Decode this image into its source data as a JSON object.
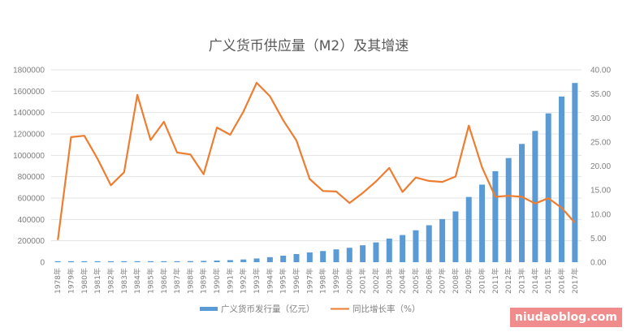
{
  "chart_data": {
    "type": "bar+line",
    "title": "广义货币供应量（M2）及其增速",
    "categories": [
      "1978年",
      "1979年",
      "1980年",
      "1981年",
      "1982年",
      "1983年",
      "1984年",
      "1985年",
      "1986年",
      "1987年",
      "1988年",
      "1989年",
      "1990年",
      "1991年",
      "1992年",
      "1993年",
      "1994年",
      "1995年",
      "1996年",
      "1997年",
      "1998年",
      "1999年",
      "2000年",
      "2001年",
      "2002年",
      "2003年",
      "2004年",
      "2005年",
      "2006年",
      "2007年",
      "2008年",
      "2009年",
      "2010年",
      "2011年",
      "2012年",
      "2013年",
      "2014年",
      "2015年",
      "2016年",
      "2017年"
    ],
    "series": [
      {
        "name": "广义货币发行量（亿元）",
        "type": "bar",
        "axis": "left",
        "color": "#5b9bd5",
        "values": [
          859,
          1177,
          1671,
          2234,
          2589,
          3075,
          4146,
          5199,
          6721,
          8330,
          10100,
          11950,
          15293,
          19350,
          25402,
          34880,
          46924,
          60751,
          76095,
          90995,
          104499,
          119898,
          134610,
          158302,
          185007,
          221223,
          254107,
          298756,
          345578,
          403442,
          475167,
          610225,
          725852,
          851591,
          974149,
          1106525,
          1228375,
          1392278,
          1550067,
          1676769
        ]
      },
      {
        "name": "同比增长率（%）",
        "type": "line",
        "axis": "right",
        "color": "#ed7d31",
        "values": [
          4.6,
          26.0,
          26.3,
          21.5,
          16.0,
          18.7,
          34.8,
          25.4,
          29.2,
          22.8,
          22.4,
          18.3,
          28.0,
          26.5,
          31.3,
          37.3,
          34.5,
          29.5,
          25.3,
          17.3,
          14.8,
          14.7,
          12.3,
          14.4,
          16.8,
          19.6,
          14.6,
          17.6,
          16.9,
          16.7,
          17.8,
          28.4,
          19.7,
          13.6,
          13.8,
          13.6,
          12.2,
          13.3,
          11.3,
          8.2
        ]
      }
    ],
    "left_axis": {
      "ylim": [
        0,
        1800000
      ],
      "ticks": [
        "0",
        "200000",
        "400000",
        "600000",
        "800000",
        "1000000",
        "1200000",
        "1400000",
        "1600000",
        "1800000"
      ]
    },
    "right_axis": {
      "ylim": [
        0,
        40
      ],
      "ticks": [
        "0.00",
        "5.00",
        "10.00",
        "15.00",
        "20.00",
        "25.00",
        "30.00",
        "35.00",
        "40.00"
      ]
    },
    "grid": true,
    "legend_position": "bottom"
  },
  "watermark": "niudaoblog.com"
}
